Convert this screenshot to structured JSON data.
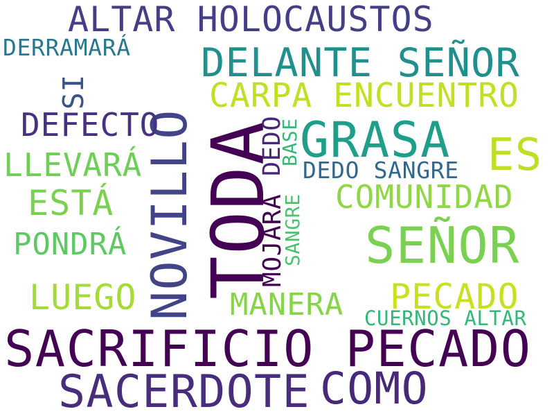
{
  "words": [
    {
      "text": "ALTAR HOLOCAUSTOS",
      "color": "#433e85"
    },
    {
      "text": "DERRAMARÁ",
      "color": "#2a788e"
    },
    {
      "text": "NOVILLO",
      "color": "#414487"
    },
    {
      "text": "DELANTE SEÑOR",
      "color": "#21908d"
    },
    {
      "text": "SI",
      "color": "#3b528b"
    },
    {
      "text": "CARPA ENCUENTRO",
      "color": "#c2df23"
    },
    {
      "text": "DEFECTO",
      "color": "#46327e"
    },
    {
      "text": "TODA",
      "color": "#440154"
    },
    {
      "text": "GRASA",
      "color": "#1f9e89"
    },
    {
      "text": "ES",
      "color": "#bddf26"
    },
    {
      "text": "DEDO",
      "color": "#482576"
    },
    {
      "text": "BASE",
      "color": "#37b878"
    },
    {
      "text": "LLEVARÁ",
      "color": "#6ece58"
    },
    {
      "text": "DEDO SANGRE",
      "color": "#31688e"
    },
    {
      "text": "MOJARÁ",
      "color": "#440154"
    },
    {
      "text": "SANGRE",
      "color": "#4ac16d"
    },
    {
      "text": "ESTÁ",
      "color": "#7ad151"
    },
    {
      "text": "COMUNIDAD",
      "color": "#8fd744"
    },
    {
      "text": "PONDRÁ",
      "color": "#5ec962"
    },
    {
      "text": "SEÑOR",
      "color": "#7ad151"
    },
    {
      "text": "LUEGO",
      "color": "#a5db36"
    },
    {
      "text": "PECADO",
      "color": "#c8e020"
    },
    {
      "text": "MANERA",
      "color": "#86d549"
    },
    {
      "text": "CUERNOS ALTAR",
      "color": "#35b779"
    },
    {
      "text": "SACRIFICIO PECADO",
      "color": "#440154"
    },
    {
      "text": "SACERDOTE",
      "color": "#472d7b"
    },
    {
      "text": "COMO",
      "color": "#482878"
    }
  ]
}
